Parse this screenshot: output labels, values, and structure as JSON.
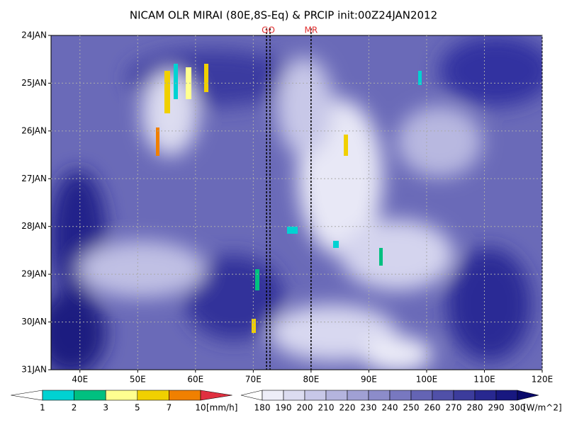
{
  "chart_data": {
    "type": "hovmoller",
    "title": "NICAM OLR MIRAI (80E,8S-Eq) & PRCIP init:00Z24JAN2012",
    "xlim": [
      35,
      120
    ],
    "xticks": [
      {
        "value": 40,
        "label": "40E"
      },
      {
        "value": 50,
        "label": "50E"
      },
      {
        "value": 60,
        "label": "60E"
      },
      {
        "value": 70,
        "label": "70E"
      },
      {
        "value": 80,
        "label": "80E"
      },
      {
        "value": 90,
        "label": "90E"
      },
      {
        "value": 100,
        "label": "100E"
      },
      {
        "value": 110,
        "label": "110E"
      },
      {
        "value": 120,
        "label": "120E"
      }
    ],
    "y": [
      "24JAN",
      "25JAN",
      "26JAN",
      "27JAN",
      "28JAN",
      "29JAN",
      "30JAN",
      "31JAN"
    ],
    "grid": true,
    "markers": [
      {
        "label": "GO",
        "lons": [
          72.3,
          72.9
        ]
      },
      {
        "label": "MR",
        "lons": [
          80
        ]
      }
    ],
    "precip_colorbar": {
      "levels": [
        1,
        2,
        3,
        5,
        7,
        10
      ],
      "unit": "[mm/h]",
      "colors": [
        "#ffffff",
        "#00d2d2",
        "#00c080",
        "#ffff90",
        "#f0d000",
        "#f08000",
        "#e03040"
      ]
    },
    "olr_colorbar": {
      "levels": [
        180,
        190,
        200,
        210,
        220,
        230,
        240,
        250,
        260,
        270,
        280,
        290,
        300
      ],
      "unit": "[W/m^2]",
      "colors": [
        "#ffffff",
        "#eeeef8",
        "#dcdcf0",
        "#c8c8e8",
        "#b4b4de",
        "#a0a0d4",
        "#8c8cca",
        "#7878c0",
        "#6464b4",
        "#5050a8",
        "#3c3c9c",
        "#282890",
        "#181880",
        "#0a0a6a"
      ]
    }
  }
}
